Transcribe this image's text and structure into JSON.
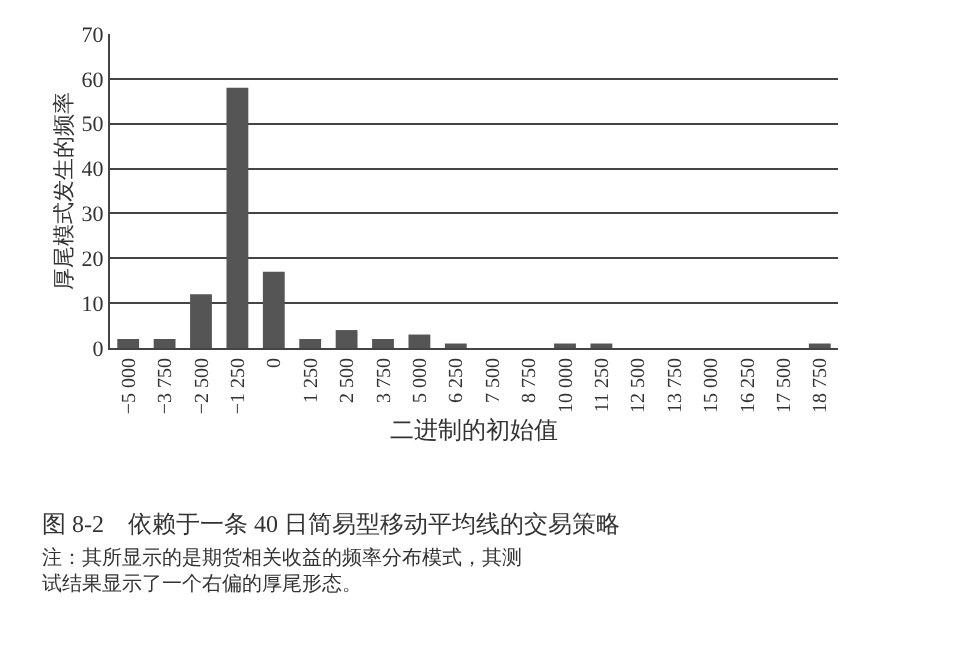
{
  "chart_data": {
    "type": "bar",
    "title": "图 8-2　依赖于一条 40 日简易型移动平均线的交易策略",
    "xlabel": "二进制的初始值",
    "ylabel": "厚尾模式发生的频率",
    "categories": [
      "−5 000",
      "−3 750",
      "−2 500",
      "−1 250",
      "0",
      "1 250",
      "2 500",
      "3 750",
      "5 000",
      "6 250",
      "7 500",
      "8 750",
      "10 000",
      "11 250",
      "12 500",
      "13 750",
      "15 000",
      "16 250",
      "17 500",
      "18 750"
    ],
    "values": [
      2,
      2,
      12,
      58,
      17,
      2,
      4,
      2,
      3,
      1,
      0,
      0,
      1,
      1,
      0,
      0,
      0,
      0,
      0,
      1
    ],
    "color": "#555555",
    "ylim": [
      0,
      70
    ],
    "yticks": [
      0,
      10,
      20,
      30,
      40,
      50,
      60,
      70
    ],
    "grid": "y",
    "annotations": [
      "注：其所显示的是期货相关收益的频率分布模式，其测试结果显示了一个右偏的厚尾形态。"
    ]
  }
}
